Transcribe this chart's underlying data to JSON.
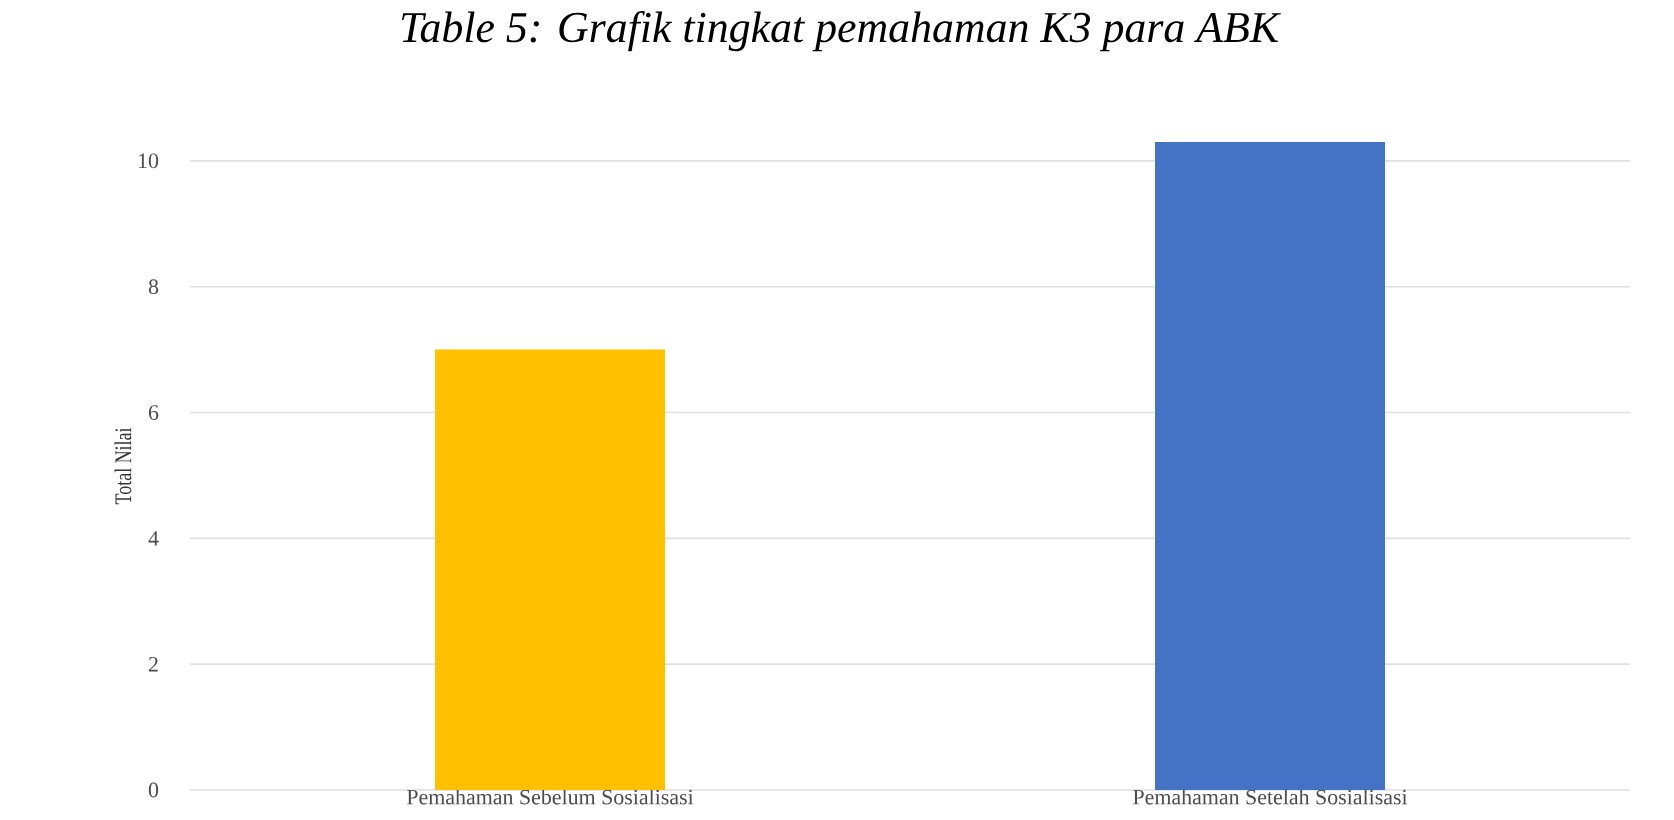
{
  "chart_data": {
    "type": "bar",
    "title": "*Table 5: Grafik tingkat pemahaman K3 para ABK*",
    "categories": [
      "Pemahaman Sebelum Sosialisasi",
      "Pemahaman Setelah Sosialisasi"
    ],
    "values": [
      7,
      10.3
    ],
    "colors": [
      "#ffc000",
      "#4472c4"
    ],
    "ylabel": "Total Nilai",
    "ylim": [
      0,
      10.3
    ],
    "yticks": [
      0,
      2,
      4,
      6,
      8,
      10
    ],
    "grid": "y"
  }
}
